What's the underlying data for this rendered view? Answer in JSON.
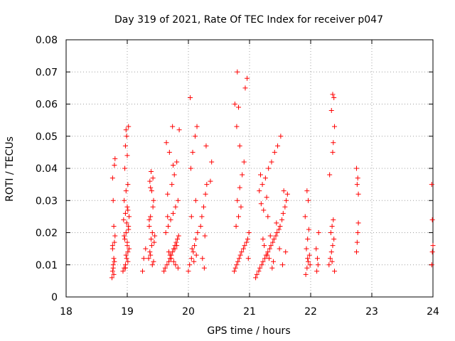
{
  "chart_data": {
    "type": "scatter",
    "title": "Day 319 of 2021, Rate Of TEC Index for receiver p047",
    "xlabel": "GPS time / hours",
    "ylabel": "ROTI / TECUs",
    "xlim": [
      18,
      24
    ],
    "ylim": [
      0,
      0.08
    ],
    "xticks": [
      18,
      19,
      20,
      21,
      22,
      23,
      24
    ],
    "xtick_labels": [
      "18",
      "19",
      "20",
      "21",
      "22",
      "23",
      "24"
    ],
    "yticks": [
      0,
      0.01,
      0.02,
      0.03,
      0.04,
      0.05,
      0.06,
      0.07,
      0.08
    ],
    "ytick_labels": [
      "0",
      "0.01",
      "0.02",
      "0.03",
      "0.04",
      "0.05",
      "0.06",
      "0.07",
      "0.08"
    ],
    "grid": true,
    "marker": "+",
    "marker_color": "#ff0000",
    "series": [
      {
        "name": "p047 ROTI",
        "x": [
          18.75,
          18.76,
          18.77,
          18.78,
          18.76,
          18.79,
          18.8,
          18.78,
          18.77,
          18.76,
          18.79,
          18.8,
          18.77,
          18.78,
          18.79,
          18.76,
          18.93,
          18.95,
          18.97,
          18.99,
          19.01,
          19.0,
          18.96,
          18.98,
          19.02,
          18.94,
          18.97,
          19.0,
          19.03,
          18.95,
          18.98,
          19.01,
          19.0,
          18.97,
          18.99,
          19.02,
          18.96,
          19.01,
          18.98,
          19.0,
          18.95,
          19.02,
          19.03,
          18.97,
          18.99,
          19.01,
          18.98,
          19.25,
          19.27,
          19.3,
          19.35,
          19.37,
          19.39,
          19.41,
          19.36,
          19.38,
          19.42,
          19.43,
          19.4,
          19.37,
          19.39,
          19.41,
          19.44,
          19.36,
          19.38,
          19.42,
          19.4,
          19.45,
          19.38,
          19.43,
          19.6,
          19.62,
          19.65,
          19.68,
          19.7,
          19.72,
          19.74,
          19.76,
          19.78,
          19.8,
          19.82,
          19.84,
          19.63,
          19.67,
          19.71,
          19.75,
          19.79,
          19.83,
          19.66,
          19.73,
          19.77,
          19.81,
          19.69,
          19.64,
          19.85,
          19.74,
          19.79,
          19.72,
          19.68,
          19.81,
          19.76,
          19.7,
          19.78,
          19.83,
          19.66,
          19.75,
          20.0,
          20.02,
          20.05,
          20.08,
          20.1,
          20.12,
          20.15,
          20.2,
          20.22,
          20.25,
          20.28,
          20.3,
          20.04,
          20.07,
          20.11,
          20.14,
          20.03,
          20.09,
          20.13,
          20.06,
          20.26,
          20.23,
          20.27,
          20.29,
          20.38,
          20.36,
          20.05,
          20.12,
          20.75,
          20.77,
          20.79,
          20.81,
          20.83,
          20.85,
          20.87,
          20.9,
          20.92,
          20.95,
          20.97,
          20.99,
          20.78,
          20.82,
          20.86,
          20.8,
          20.84,
          20.88,
          20.91,
          20.76,
          20.93,
          20.96,
          20.8,
          20.82,
          20.79,
          20.84,
          20.98,
          21.1,
          21.12,
          21.15,
          21.17,
          21.2,
          21.22,
          21.25,
          21.27,
          21.3,
          21.33,
          21.35,
          21.38,
          21.4,
          21.43,
          21.45,
          21.48,
          21.5,
          21.53,
          21.55,
          21.58,
          21.6,
          21.62,
          21.16,
          21.21,
          21.26,
          21.31,
          21.36,
          21.41,
          21.46,
          21.51,
          21.56,
          21.19,
          21.24,
          21.29,
          21.34,
          21.39,
          21.44,
          21.49,
          21.54,
          21.59,
          21.23,
          21.28,
          21.32,
          21.22,
          21.18,
          21.3,
          21.37,
          21.92,
          21.94,
          21.96,
          21.98,
          21.93,
          21.95,
          21.97,
          21.91,
          21.96,
          21.94,
          21.99,
          21.95,
          22.1,
          22.12,
          22.11,
          22.09,
          22.13,
          22.3,
          22.32,
          22.34,
          22.36,
          22.38,
          22.33,
          22.35,
          22.37,
          22.31,
          22.36,
          22.39,
          22.34,
          22.38,
          22.36,
          22.37,
          22.35,
          22.39,
          22.75,
          22.76,
          22.77,
          22.78,
          22.76,
          22.77,
          22.75,
          22.78,
          23.98,
          23.99,
          24.0,
          23.99,
          23.98
        ],
        "y": [
          0.006,
          0.008,
          0.01,
          0.012,
          0.015,
          0.017,
          0.019,
          0.022,
          0.03,
          0.037,
          0.041,
          0.043,
          0.009,
          0.007,
          0.011,
          0.016,
          0.008,
          0.009,
          0.01,
          0.012,
          0.014,
          0.016,
          0.018,
          0.02,
          0.022,
          0.024,
          0.026,
          0.028,
          0.025,
          0.03,
          0.033,
          0.035,
          0.044,
          0.047,
          0.05,
          0.053,
          0.04,
          0.011,
          0.013,
          0.017,
          0.019,
          0.021,
          0.015,
          0.009,
          0.023,
          0.027,
          0.052,
          0.008,
          0.012,
          0.015,
          0.012,
          0.014,
          0.018,
          0.02,
          0.022,
          0.025,
          0.028,
          0.03,
          0.033,
          0.036,
          0.039,
          0.01,
          0.017,
          0.024,
          0.034,
          0.037,
          0.016,
          0.019,
          0.013,
          0.011,
          0.008,
          0.009,
          0.01,
          0.011,
          0.012,
          0.013,
          0.014,
          0.015,
          0.016,
          0.017,
          0.018,
          0.019,
          0.02,
          0.022,
          0.024,
          0.026,
          0.028,
          0.03,
          0.032,
          0.035,
          0.038,
          0.042,
          0.045,
          0.048,
          0.052,
          0.053,
          0.01,
          0.012,
          0.014,
          0.016,
          0.011,
          0.013,
          0.015,
          0.009,
          0.025,
          0.041,
          0.008,
          0.01,
          0.012,
          0.014,
          0.016,
          0.018,
          0.02,
          0.022,
          0.025,
          0.028,
          0.032,
          0.035,
          0.04,
          0.045,
          0.05,
          0.053,
          0.062,
          0.011,
          0.013,
          0.015,
          0.009,
          0.012,
          0.019,
          0.047,
          0.042,
          0.036,
          0.025,
          0.03,
          0.008,
          0.009,
          0.01,
          0.011,
          0.012,
          0.013,
          0.014,
          0.015,
          0.016,
          0.017,
          0.018,
          0.02,
          0.022,
          0.025,
          0.028,
          0.03,
          0.034,
          0.038,
          0.042,
          0.06,
          0.065,
          0.068,
          0.07,
          0.059,
          0.053,
          0.047,
          0.012,
          0.006,
          0.007,
          0.008,
          0.009,
          0.01,
          0.011,
          0.012,
          0.013,
          0.014,
          0.015,
          0.016,
          0.017,
          0.018,
          0.019,
          0.02,
          0.021,
          0.022,
          0.024,
          0.026,
          0.028,
          0.03,
          0.032,
          0.033,
          0.035,
          0.037,
          0.04,
          0.042,
          0.045,
          0.047,
          0.05,
          0.033,
          0.029,
          0.016,
          0.013,
          0.019,
          0.011,
          0.023,
          0.015,
          0.01,
          0.014,
          0.027,
          0.031,
          0.012,
          0.018,
          0.038,
          0.025,
          0.009,
          0.007,
          0.009,
          0.011,
          0.013,
          0.015,
          0.018,
          0.021,
          0.025,
          0.03,
          0.033,
          0.01,
          0.012,
          0.008,
          0.01,
          0.012,
          0.015,
          0.02,
          0.01,
          0.012,
          0.014,
          0.016,
          0.018,
          0.02,
          0.022,
          0.024,
          0.038,
          0.045,
          0.053,
          0.058,
          0.062,
          0.063,
          0.048,
          0.011,
          0.008,
          0.014,
          0.017,
          0.02,
          0.023,
          0.035,
          0.037,
          0.04,
          0.032,
          0.01,
          0.014,
          0.016,
          0.024,
          0.035
        ]
      }
    ]
  }
}
